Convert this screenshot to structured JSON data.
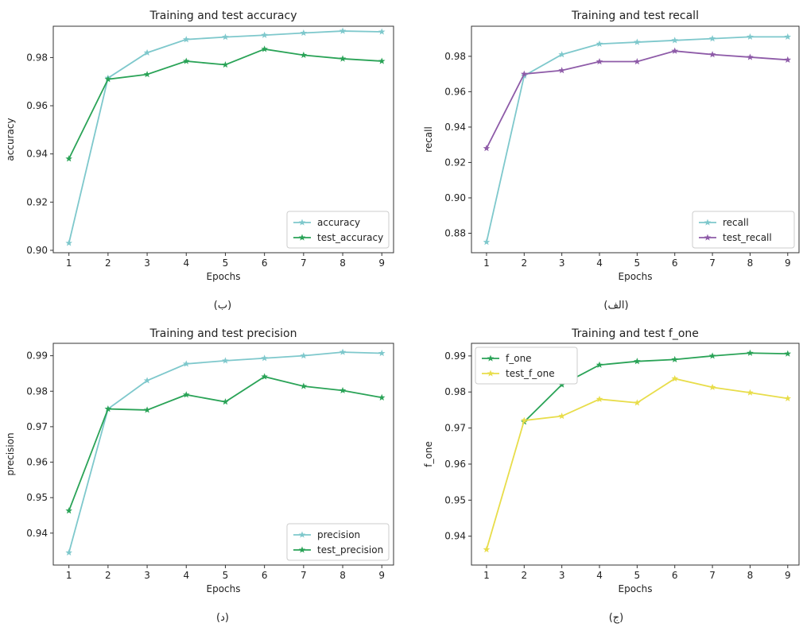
{
  "chart_data": [
    {
      "type": "line",
      "title": "Training and test accuracy",
      "xlabel": "Epochs",
      "ylabel": "accuracy",
      "caption": "(ب)",
      "x": [
        1,
        2,
        3,
        4,
        5,
        6,
        7,
        8,
        9
      ],
      "xlim": [
        0.6,
        9.3
      ],
      "ylim": [
        0.899,
        0.993
      ],
      "yticks": [
        "0.90",
        "0.92",
        "0.94",
        "0.96",
        "0.98"
      ],
      "legend_position": "lower-right",
      "grid": false,
      "series": [
        {
          "name": "accuracy",
          "color": "#7ec8cc",
          "marker": "star",
          "values": [
            0.903,
            0.9715,
            0.982,
            0.9875,
            0.9885,
            0.9893,
            0.9902,
            0.991,
            0.9907
          ]
        },
        {
          "name": "test_accuracy",
          "color": "#2aa357",
          "marker": "star",
          "values": [
            0.938,
            0.971,
            0.973,
            0.9785,
            0.977,
            0.9835,
            0.981,
            0.9795,
            0.9785
          ]
        }
      ]
    },
    {
      "type": "line",
      "title": "Training and test recall",
      "xlabel": "Epochs",
      "ylabel": "recall",
      "caption": "(الف)",
      "x": [
        1,
        2,
        3,
        4,
        5,
        6,
        7,
        8,
        9
      ],
      "xlim": [
        0.6,
        9.3
      ],
      "ylim": [
        0.869,
        0.997
      ],
      "yticks": [
        "0.88",
        "0.90",
        "0.92",
        "0.94",
        "0.96",
        "0.98"
      ],
      "legend_position": "lower-right",
      "grid": false,
      "series": [
        {
          "name": "recall",
          "color": "#7ec8cc",
          "marker": "star",
          "values": [
            0.875,
            0.969,
            0.981,
            0.987,
            0.988,
            0.989,
            0.99,
            0.991,
            0.991
          ]
        },
        {
          "name": "test_recall",
          "color": "#8e5ba8",
          "marker": "star",
          "values": [
            0.928,
            0.97,
            0.972,
            0.977,
            0.977,
            0.983,
            0.981,
            0.9795,
            0.978
          ]
        }
      ]
    },
    {
      "type": "line",
      "title": "Training and test precision",
      "xlabel": "Epochs",
      "ylabel": "precision",
      "caption": "(د)",
      "x": [
        1,
        2,
        3,
        4,
        5,
        6,
        7,
        8,
        9
      ],
      "xlim": [
        0.6,
        9.3
      ],
      "ylim": [
        0.931,
        0.9935
      ],
      "yticks": [
        "0.94",
        "0.95",
        "0.96",
        "0.97",
        "0.98",
        "0.99"
      ],
      "legend_position": "lower-right",
      "grid": false,
      "series": [
        {
          "name": "precision",
          "color": "#7ec8cc",
          "marker": "star",
          "values": [
            0.9345,
            0.975,
            0.983,
            0.9877,
            0.9886,
            0.9893,
            0.99,
            0.991,
            0.9907
          ]
        },
        {
          "name": "test_precision",
          "color": "#2aa357",
          "marker": "star",
          "values": [
            0.9463,
            0.975,
            0.9747,
            0.979,
            0.977,
            0.9841,
            0.9814,
            0.9802,
            0.9782
          ]
        }
      ]
    },
    {
      "type": "line",
      "title": "Training and test f_one",
      "xlabel": "Epochs",
      "ylabel": "f_one",
      "caption": "(ج)",
      "x": [
        1,
        2,
        3,
        4,
        5,
        6,
        7,
        8,
        9
      ],
      "xlim": [
        0.6,
        9.3
      ],
      "ylim": [
        0.932,
        0.9935
      ],
      "yticks": [
        "0.94",
        "0.95",
        "0.96",
        "0.97",
        "0.98",
        "0.99"
      ],
      "legend_position": "upper-left",
      "grid": false,
      "series": [
        {
          "name": "f_one",
          "color": "#2aa357",
          "marker": "star",
          "values": [
            null,
            0.9717,
            0.982,
            0.9875,
            0.9885,
            0.989,
            0.99,
            0.9908,
            0.9906
          ]
        },
        {
          "name": "test_f_one",
          "color": "#e8dd4a",
          "marker": "star",
          "values": [
            0.9363,
            0.9721,
            0.9733,
            0.978,
            0.977,
            0.9837,
            0.9813,
            0.9798,
            0.9782
          ]
        }
      ]
    }
  ]
}
